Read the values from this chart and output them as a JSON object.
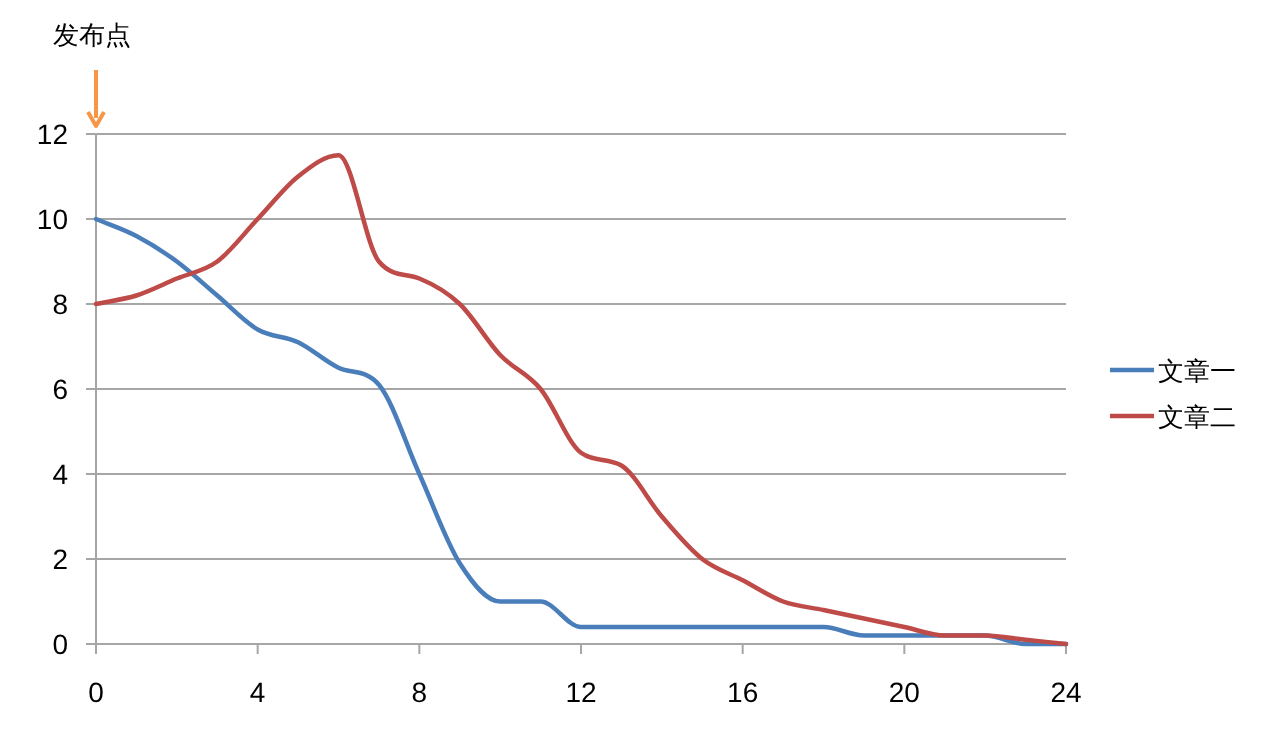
{
  "chart_data": {
    "type": "line",
    "x": [
      0,
      1,
      2,
      3,
      4,
      5,
      6,
      7,
      8,
      9,
      10,
      11,
      12,
      13,
      14,
      15,
      16,
      17,
      18,
      19,
      20,
      21,
      22,
      23,
      24
    ],
    "series": [
      {
        "name": "文章一",
        "color": "#4a7ebb",
        "values": [
          10,
          9.6,
          9.0,
          8.2,
          7.4,
          7.1,
          6.5,
          6.1,
          4.0,
          1.9,
          1.0,
          1.0,
          0.4,
          0.4,
          0.4,
          0.4,
          0.4,
          0.4,
          0.4,
          0.2,
          0.2,
          0.2,
          0.2,
          0.0,
          0.0
        ]
      },
      {
        "name": "文章二",
        "color": "#be4b48",
        "values": [
          8,
          8.2,
          8.6,
          9.0,
          10.0,
          11.0,
          11.5,
          9.0,
          8.6,
          8.0,
          6.8,
          6.0,
          4.5,
          4.2,
          3.0,
          2.0,
          1.5,
          1.0,
          0.8,
          0.6,
          0.4,
          0.2,
          0.2,
          0.1,
          0.0
        ]
      }
    ],
    "xlim": [
      0,
      24
    ],
    "xticks": [
      0,
      4,
      8,
      12,
      16,
      20,
      24
    ],
    "ylim": [
      0,
      12
    ],
    "yticks": [
      0,
      2,
      4,
      6,
      8,
      10,
      12
    ],
    "grid": "y",
    "legend": "right",
    "annotations": [
      "发布点"
    ]
  }
}
